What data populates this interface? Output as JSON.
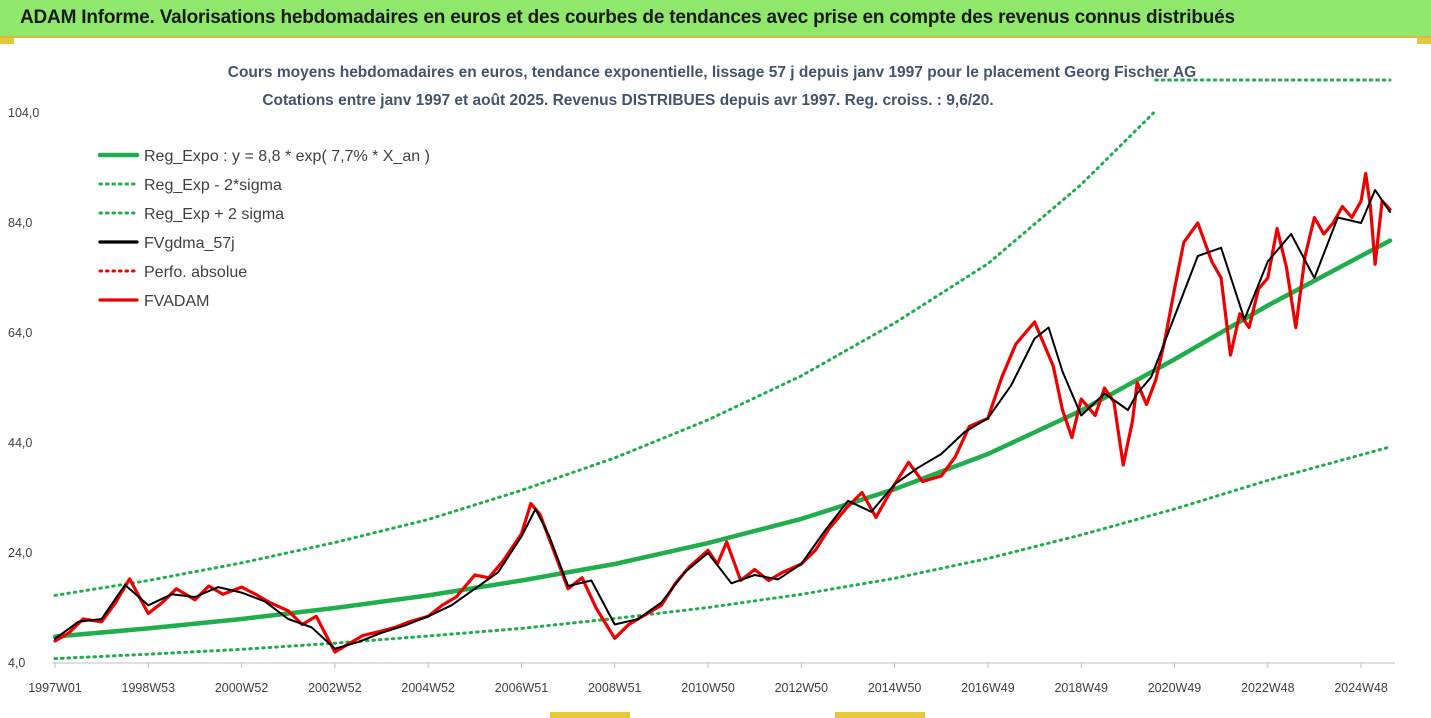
{
  "banner": {
    "text": "ADAM Informe. Valorisations hebdomadaires en euros et des courbes de tendances avec prise en compte des revenus connus distribués"
  },
  "colors": {
    "banner_bg": "#8fe86b",
    "green": "#1fae4b",
    "black": "#000000",
    "red": "#ee0000",
    "title_text": "#44546a"
  },
  "chart_data": {
    "type": "line",
    "title": "Cours moyens hebdomadaires en euros, tendance exponentielle, lissage 57 j depuis janv 1997 pour le placement Georg Fischer AG",
    "subtitle": "Cotations entre janv 1997 et août 2025. Revenus DISTRIBUES depuis avr 1997. Reg. croiss. : 9,6/20.",
    "x_range": [
      1997.0,
      2025.62
    ],
    "y_range": [
      4.0,
      104.0
    ],
    "y_ticks": [
      "104,0",
      "84,0",
      "64,0",
      "44,0",
      "24,0",
      "4,0"
    ],
    "y_tick_values": [
      104,
      84,
      64,
      44,
      24,
      4
    ],
    "x_ticks": [
      "1997W01",
      "1998W53",
      "2000W52",
      "2002W52",
      "2004W52",
      "2006W51",
      "2008W51",
      "2010W50",
      "2012W50",
      "2014W50",
      "2016W49",
      "2018W49",
      "2020W49",
      "2022W48",
      "2024W48"
    ],
    "x_tick_years": [
      1997.0,
      1999.0,
      2001.0,
      2003.0,
      2005.0,
      2007.0,
      2009.0,
      2011.0,
      2013.0,
      2015.0,
      2017.0,
      2019.0,
      2021.0,
      2023.0,
      2025.0
    ],
    "legend": {
      "placement": "top-left",
      "entries": [
        {
          "label": "Reg_Expo : y = 8,8 * exp( 7,7% *  X_an )",
          "color": "#1fae4b",
          "style": "solid"
        },
        {
          "label": "Reg_Exp - 2*sigma",
          "color": "#1fae4b",
          "style": "dotted"
        },
        {
          "label": "Reg_Exp + 2 sigma",
          "color": "#1fae4b",
          "style": "dotted"
        },
        {
          "label": "FVgdma_57j",
          "color": "#000000",
          "style": "solid"
        },
        {
          "label": "Perfo. absolue",
          "color": "#ee0000",
          "style": "dotted"
        },
        {
          "label": "FVADAM",
          "color": "#ee0000",
          "style": "solid"
        }
      ]
    },
    "series": [
      {
        "name": "Reg_Expo : y = 8,8 * exp( 7,7% *  X_an )",
        "x": [
          1997.0,
          1999.0,
          2001.0,
          2003.0,
          2005.0,
          2007.0,
          2009.0,
          2011.0,
          2013.0,
          2015.0,
          2017.0,
          2019.0,
          2021.0,
          2023.0,
          2025.62
        ],
        "values": [
          8.8,
          10.3,
          12.0,
          14.0,
          16.3,
          19.0,
          22.0,
          25.8,
          30.2,
          35.6,
          42.0,
          49.9,
          59.2,
          69.0,
          80.8
        ]
      },
      {
        "name": "Reg_Exp - 2*sigma",
        "x": [
          1997.0,
          1999.0,
          2001.0,
          2003.0,
          2005.0,
          2007.0,
          2009.0,
          2011.0,
          2013.0,
          2015.0,
          2017.0,
          2019.0,
          2021.0,
          2023.0,
          2025.62
        ],
        "values": [
          4.8,
          5.6,
          6.5,
          7.6,
          8.9,
          10.3,
          12.1,
          14.1,
          16.5,
          19.4,
          23.0,
          27.3,
          32.0,
          37.2,
          43.3
        ]
      },
      {
        "name": "Reg_Exp + 2 sigma",
        "x": [
          1997.0,
          1999.0,
          2001.0,
          2003.0,
          2005.0,
          2007.0,
          2009.0,
          2011.0,
          2013.0,
          2015.0,
          2017.0,
          2019.0,
          2020.55
        ],
        "values": [
          16.3,
          19.0,
          22.2,
          25.9,
          30.1,
          35.4,
          41.3,
          48.2,
          56.2,
          65.8,
          76.6,
          91.0,
          104.0
        ]
      },
      {
        "name": "Perfo. absolue",
        "x": [
          2020.6,
          2025.62
        ],
        "values": [
          110.0,
          110.0
        ]
      },
      {
        "name": "FVgdma_57j",
        "x": [
          1997.0,
          1997.5,
          1998.0,
          1998.5,
          1999.0,
          1999.5,
          2000.0,
          2000.5,
          2001.0,
          2001.5,
          2002.0,
          2002.5,
          2003.0,
          2003.5,
          2004.0,
          2004.5,
          2005.0,
          2005.5,
          2006.0,
          2006.5,
          2007.0,
          2007.3,
          2007.6,
          2008.0,
          2008.5,
          2009.0,
          2009.5,
          2010.0,
          2010.5,
          2011.0,
          2011.5,
          2012.0,
          2012.5,
          2013.0,
          2013.5,
          2014.0,
          2014.5,
          2015.0,
          2015.5,
          2016.0,
          2016.5,
          2017.0,
          2017.5,
          2018.0,
          2018.3,
          2018.6,
          2019.0,
          2019.5,
          2020.0,
          2020.2,
          2020.5,
          2021.0,
          2021.5,
          2022.0,
          2022.5,
          2023.0,
          2023.5,
          2024.0,
          2024.5,
          2025.0,
          2025.3,
          2025.62
        ],
        "values": [
          8.4,
          11.5,
          12.0,
          18.2,
          14.5,
          16.5,
          16.0,
          17.8,
          16.8,
          15.2,
          12.0,
          10.5,
          6.6,
          7.8,
          9.5,
          10.8,
          12.5,
          14.5,
          17.5,
          20.5,
          27.0,
          32.0,
          27.0,
          18.0,
          19.0,
          11.0,
          12.0,
          15.0,
          20.5,
          24.0,
          18.5,
          20.0,
          19.2,
          22.0,
          28.0,
          33.5,
          31.5,
          36.5,
          39.5,
          42.0,
          46.0,
          48.5,
          54.5,
          63.0,
          65.0,
          57.0,
          49.0,
          53.0,
          50.0,
          53.0,
          56.0,
          67.0,
          78.0,
          79.5,
          66.5,
          77.0,
          82.0,
          74.0,
          85.0,
          84.0,
          90.0,
          86.0
        ]
      },
      {
        "name": "FVADAM",
        "x": [
          1997.0,
          1997.3,
          1997.6,
          1998.0,
          1998.3,
          1998.6,
          1999.0,
          1999.3,
          1999.6,
          2000.0,
          2000.3,
          2000.6,
          2001.0,
          2001.3,
          2001.6,
          2002.0,
          2002.3,
          2002.6,
          2003.0,
          2003.3,
          2003.6,
          2004.0,
          2004.3,
          2004.6,
          2005.0,
          2005.3,
          2005.6,
          2006.0,
          2006.3,
          2006.6,
          2007.0,
          2007.2,
          2007.4,
          2007.6,
          2008.0,
          2008.3,
          2008.6,
          2009.0,
          2009.3,
          2009.6,
          2010.0,
          2010.3,
          2010.6,
          2011.0,
          2011.2,
          2011.4,
          2011.7,
          2012.0,
          2012.3,
          2012.6,
          2013.0,
          2013.3,
          2013.6,
          2014.0,
          2014.3,
          2014.6,
          2015.0,
          2015.3,
          2015.6,
          2016.0,
          2016.3,
          2016.6,
          2017.0,
          2017.3,
          2017.6,
          2018.0,
          2018.2,
          2018.4,
          2018.6,
          2018.8,
          2019.0,
          2019.3,
          2019.5,
          2019.7,
          2019.9,
          2020.1,
          2020.2,
          2020.4,
          2020.6,
          2020.8,
          2021.0,
          2021.2,
          2021.5,
          2021.8,
          2022.0,
          2022.2,
          2022.4,
          2022.6,
          2022.8,
          2023.0,
          2023.2,
          2023.4,
          2023.6,
          2023.8,
          2024.0,
          2024.2,
          2024.4,
          2024.6,
          2024.8,
          2025.0,
          2025.1,
          2025.2,
          2025.3,
          2025.45,
          2025.62
        ],
        "values": [
          8.0,
          9.5,
          12.0,
          11.5,
          15.0,
          19.3,
          13.0,
          15.0,
          17.5,
          15.5,
          18.0,
          16.5,
          17.8,
          16.5,
          15.0,
          13.5,
          11.0,
          12.5,
          6.0,
          7.5,
          9.0,
          9.8,
          10.5,
          11.5,
          12.5,
          14.5,
          16.0,
          20.0,
          19.5,
          22.5,
          27.5,
          33.0,
          31.0,
          26.5,
          17.5,
          19.5,
          14.0,
          8.5,
          11.0,
          12.5,
          14.5,
          18.5,
          21.5,
          24.5,
          22.0,
          26.0,
          19.0,
          21.0,
          19.0,
          20.5,
          22.0,
          24.5,
          28.5,
          32.5,
          35.0,
          30.5,
          36.5,
          40.5,
          37.0,
          38.0,
          41.5,
          47.0,
          48.5,
          56.0,
          62.0,
          66.0,
          62.0,
          58.0,
          50.0,
          45.0,
          52.0,
          49.0,
          54.0,
          51.5,
          40.0,
          48.0,
          55.0,
          51.0,
          55.5,
          63.0,
          72.0,
          80.5,
          84.0,
          77.0,
          74.0,
          60.0,
          67.5,
          65.0,
          72.0,
          74.0,
          83.0,
          76.0,
          65.0,
          78.0,
          85.0,
          82.0,
          84.0,
          87.0,
          85.0,
          88.0,
          93.0,
          87.0,
          76.5,
          88.0,
          86.5
        ]
      }
    ]
  }
}
